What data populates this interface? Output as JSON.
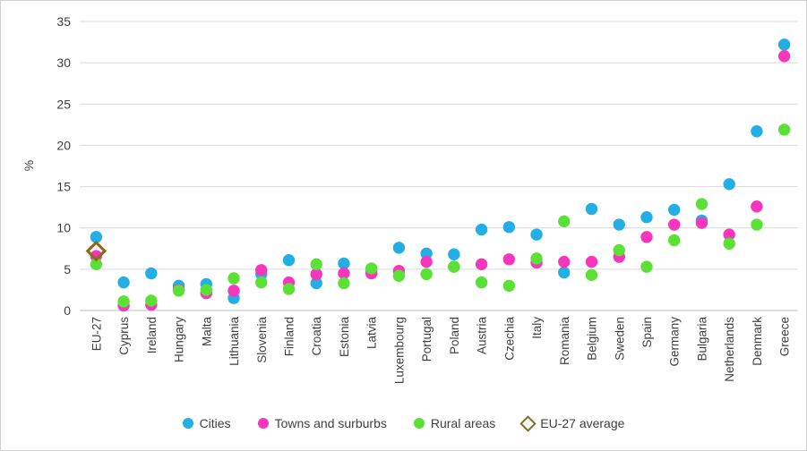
{
  "chart_data": {
    "type": "scatter",
    "title": "",
    "xlabel": "",
    "ylabel": "%",
    "ylim": [
      0,
      35
    ],
    "yticks": [
      0,
      5,
      10,
      15,
      20,
      25,
      30,
      35
    ],
    "grid": true,
    "legend_position": "bottom",
    "categories": [
      "EU-27",
      "Cyprus",
      "Ireland",
      "Hungary",
      "Malta",
      "Lithuania",
      "Slovenia",
      "Finland",
      "Croatia",
      "Estonia",
      "Latvia",
      "Luxembourg",
      "Portugal",
      "Poland",
      "Austria",
      "Czechia",
      "Italy",
      "Romania",
      "Belgium",
      "Sweden",
      "Spain",
      "Germany",
      "Bulgaria",
      "Netherlands",
      "Denmark",
      "Greece"
    ],
    "series": [
      {
        "name": "Cities",
        "marker": "circle",
        "color": "#23AEE4",
        "values": [
          8.9,
          3.4,
          4.5,
          3.0,
          3.2,
          1.5,
          4.4,
          6.1,
          3.3,
          5.7,
          4.8,
          7.6,
          6.9,
          6.8,
          9.8,
          10.1,
          9.2,
          4.6,
          12.3,
          10.4,
          11.3,
          12.2,
          10.9,
          15.3,
          21.7,
          32.2
        ]
      },
      {
        "name": "Towns and surburbs",
        "marker": "circle",
        "color": "#F637BE",
        "values": [
          6.6,
          0.6,
          0.7,
          2.5,
          2.1,
          2.4,
          4.9,
          3.4,
          4.4,
          4.5,
          4.5,
          4.8,
          5.9,
          5.3,
          5.6,
          6.2,
          5.8,
          5.9,
          5.9,
          6.5,
          8.9,
          10.4,
          10.6,
          9.2,
          12.6,
          30.8
        ]
      },
      {
        "name": "Rural areas",
        "marker": "circle",
        "color": "#5BE136",
        "values": [
          5.6,
          1.1,
          1.2,
          2.4,
          2.5,
          3.9,
          3.4,
          2.6,
          5.6,
          3.3,
          5.1,
          4.2,
          4.4,
          5.3,
          3.4,
          3.0,
          6.3,
          10.8,
          4.3,
          7.3,
          5.3,
          8.5,
          12.9,
          8.1,
          10.4,
          21.9
        ]
      }
    ],
    "reference_marker": {
      "name": "EU-27 average",
      "marker": "diamond-outline",
      "color": "#8E6B1A",
      "category": "EU-27",
      "value": 7.2
    }
  },
  "style": {
    "gridline_color": "#D9D9D9",
    "axis_line_color": "#BFBFBF",
    "text_color": "#3f3f3f",
    "background": "#ffffff",
    "frame_border": "#cfcfcf"
  }
}
